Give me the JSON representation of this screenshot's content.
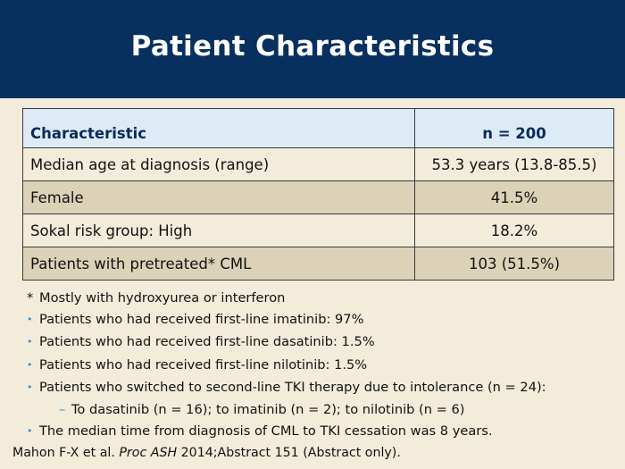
{
  "title": "Patient Characteristics",
  "table": {
    "headers": [
      "Characteristic",
      "n = 200"
    ],
    "rows": [
      [
        "Median age at diagnosis (range)",
        "53.3 years (13.8-85.5)"
      ],
      [
        "Female",
        "41.5%"
      ],
      [
        "Sokal risk group: High",
        "18.2%"
      ],
      [
        "Patients with pretreated* CML",
        "103 (51.5%)"
      ]
    ]
  },
  "notes": {
    "footnote_mark": "*",
    "footnote": "Mostly with hydroxyurea or interferon",
    "bullet_symbol": "•",
    "sub_symbol": "–",
    "bullets": [
      "Patients who had received first-line imatinib: 97%",
      "Patients who had received first-line dasatinib: 1.5%",
      "Patients who had received first-line nilotinib: 1.5%",
      "Patients who switched to second-line TKI therapy due to intolerance (n = 24):"
    ],
    "sub_bullet": "To dasatinib (n = 16); to imatinib (n = 2); to nilotinib (n = 6)",
    "last_bullet": "The median time from diagnosis of CML to TKI cessation was 8 years."
  },
  "citation": {
    "authors": "Mahon F-X et al.",
    "journal": "Proc ASH",
    "rest": "2014;Abstract 151 (Abstract only)."
  }
}
